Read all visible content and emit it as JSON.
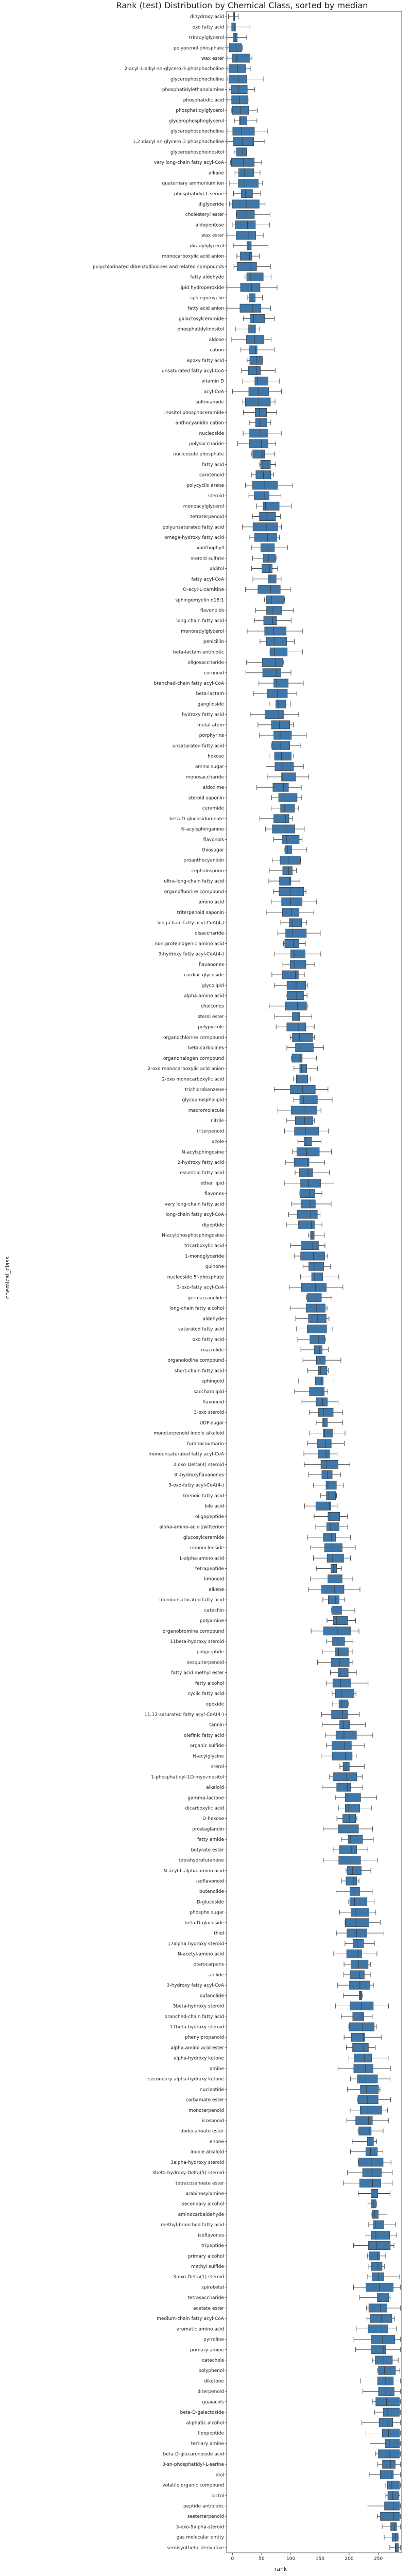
{
  "chart_data": {
    "type": "box",
    "orientation": "horizontal",
    "title": "Rank (test) Distribution by Chemical Class, sorted by median",
    "xlabel": "rank",
    "ylabel": "chemical_class",
    "xlim": [
      -10,
      290
    ],
    "xticks": [
      0,
      50,
      100,
      150,
      200,
      250
    ],
    "grid": false,
    "box_color": "#3f77a8",
    "categories": [
      "dihydroxy acid",
      "oxo fatty acid",
      "triradylglycerol",
      "polyprenol phosphate",
      "wax ester",
      "2-acyl-1-alkyl-sn-glycero-3-phosphocholine",
      "glycerophosphocholine",
      "phosphatidylethanolamine",
      "phosphatidic acid",
      "phosphatidylglycerol",
      "glycerophosphoglycerol",
      "glycerophosphocholine",
      "1,2-diacyl-sn-glycero-3-phosphocholine",
      "glycerophosphoinositol",
      "very long-chain fatty acyl-CoA",
      "alkane",
      "quaternary ammonium ion",
      "phosphatidyl-L-serine",
      "diglyceride",
      "cholesteryl ester",
      "aldopentose",
      "wax ester",
      "diradylglycerol",
      "monocarboxylic acid anion",
      "polychlorinated dibenzodioxines and related compounds",
      "fatty aldehyde",
      "lipid hydroperoxide",
      "sphingomyelin",
      "fatty acid anion",
      "galactosylceramide",
      "phosphatidylinositol",
      "aldose",
      "cation",
      "epoxy fatty acid",
      "unsaturated fatty acyl-CoA",
      "vitamin D",
      "acyl-CoA",
      "sulfonamide",
      "inositol phosphoceramide",
      "anthocyanidin cation",
      "nucleoside",
      "polysaccharide",
      "nucleoside phosphate",
      "fatty acid",
      "carotenoid",
      "polycyclic arene",
      "steroid",
      "monoacylglycerol",
      "tetraterpenoid",
      "polyunsaturated fatty acid",
      "omega-hydroxy fatty acid",
      "xanthophyll",
      "steroid sulfate",
      "alditol",
      "fatty acyl-CoA",
      "O-acyl-L-carnitine",
      "sphingomyelin d18:1",
      "flavonoids",
      "long-chain fatty acid",
      "monoradylglycerol",
      "penicillin",
      "beta-lactam antibiotic",
      "oligosaccharide",
      "cornnoid",
      "branched-chain fatty acyl-CoA",
      "beta-lactam",
      "ganglioside",
      "hydroxy fatty acid",
      "metal atom",
      "porphyrins",
      "unsaturated fatty acid",
      "hexose",
      "amino sugar",
      "monosaccharide",
      "aldoxime",
      "steroid saponin",
      "ceramide",
      "beta-D-glucosiduronate",
      "N-acylsphinganine",
      "flavonols",
      "thiosugar",
      "proanthocyanidin",
      "cephalosporin",
      "ultra-long-chain fatty acid",
      "organofluorine compound",
      "amino acid",
      "triterpenoid saponin",
      "long-chain fatty acyl-CoA(4-)",
      "disaccharide",
      "non-proteinogenic amino acid",
      "3-hydroxy fatty acyl-CoA(4-)",
      "flavanones",
      "cardiac glycoside",
      "glycolipid",
      "alpha-amino acid",
      "chalcones",
      "sterol ester",
      "polypyrrole",
      "organochlorine compound",
      "beta-carbolines",
      "organohalogen compound",
      "2-oxo monocarboxylic acid anion",
      "2-oxo monocarboxylic acid",
      "trichlorobenzene",
      "glycophospholipid",
      "macromolecule",
      "nitrile",
      "triterpenoid",
      "azole",
      "N-acylsphingosine",
      "2-hydroxy fatty acid",
      "essential fatty acid",
      "ether lipid",
      "flavones",
      "very long-chain fatty acid",
      "long-chain fatty acyl-CoA",
      "dipeptide",
      "N-acylphosphosphingosine",
      "tricarboxylic acid",
      "1-monoglyceride",
      "quinone",
      "nucleoside 5'-phosphate",
      "3-oxo-fatty acyl-CoA",
      "germacranolide",
      "long-chain fatty alcohol",
      "aldehyde",
      "saturated fatty acid",
      "oxo fatty acid",
      "macrolide",
      "organoiodine compound",
      "short-chain fatty acid",
      "sphingoid",
      "saccharolipid",
      "flavonoid",
      "3-oxo steroid",
      "UDP-sugar",
      "monoterpenoid indole alkaloid",
      "furanocoumarin",
      "monounsaturated fatty acyl-CoA",
      "3-oxo-Delta(4) steroid",
      "8'-hydroxyflavanones",
      "3-oxo-fatty acyl-CoA(4-)",
      "trienoic fatty acid",
      "bile acid",
      "oligopeptide",
      "alpha-amino-acid zwitterion",
      "glucosylceramide",
      "ribonucleoside",
      "L-alpha-amino acid",
      "tetrapeptide",
      "limonoid",
      "alkene",
      "monounsaturated fatty acid",
      "catechin",
      "polyamine",
      "organobromine compound",
      "11beta-hydroxy steroid",
      "polypeptide",
      "sesquiterpenoid",
      "fatty acid methyl ester",
      "fatty alcohol",
      "cyclic fatty acid",
      "epoxide",
      "11,12-saturated fatty acyl-CoA(4-)",
      "tannin",
      "olefinic fatty acid",
      "organic sulfide",
      "N-acylglycine",
      "sterol",
      "1-phosphatidyl-1D-myo-inositol",
      "alkaloid",
      "gamma-lactone",
      "dicarboxylic acid",
      "D-hexose",
      "prostaglandin",
      "fatty amide",
      "butyrate ester",
      "tetrahydrofuranone",
      "N-acyl-L-alpha-amino acid",
      "isoflavonoid",
      "butenolide",
      "D-glucoside",
      "phospho sugar",
      "beta-D-glucoside",
      "thiol",
      "17alpha-hydroxy steroid",
      "N-acetyl-amino acid",
      "pterocarpans",
      "anilide",
      "3-hydroxy fatty acyl-CoA",
      "bufanolide",
      "3beta-hydroxy steroid",
      "branched-chain fatty acid",
      "17beta-hydroxy steroid",
      "phenylpropanoid",
      "alpha-amino acid ester",
      "alpha-hydroxy ketone",
      "amine",
      "secondary alpha-hydroxy ketone",
      "nucleotide",
      "carbamate ester",
      "monoterpenoid",
      "icosanoid",
      "dodecanoate ester",
      "enone",
      "indole alkaloid",
      "3alpha-hydroxy steroid",
      "3beta-hydroxy-Delta(5)-steroid",
      "tetracosanoate ester",
      "arabinosylamine",
      "secondary alcohol",
      "aminocarbaldehyde",
      "methyl-branched fatty acid",
      "isoflavones",
      "tripeptide",
      "primary alcohol",
      "methyl sulfide",
      "3-oxo-Delta(1) steroid",
      "spiroketal",
      "tetrasaccharide",
      "acetate ester",
      "medium-chain fatty acyl-CoA",
      "aromatic amino acid",
      "pyrroline",
      "primary amine",
      "catechols",
      "polyphenol",
      "diketone",
      "diterpenoid",
      "guaiacols",
      "beta-D-galactoside",
      "aliphatic alcohol",
      "lipopeptide",
      "tertiary amine",
      "beta-D-glucuronoside acid",
      "3-sn-phosphatidyl-L-serine",
      "diol",
      "volatile organic compound",
      "lactol",
      "peptide antibiotic",
      "sesterterpenoid",
      "3-oxo-5alpha-steroid",
      "gas molecular entity",
      "semisynthetic derivative"
    ]
  }
}
